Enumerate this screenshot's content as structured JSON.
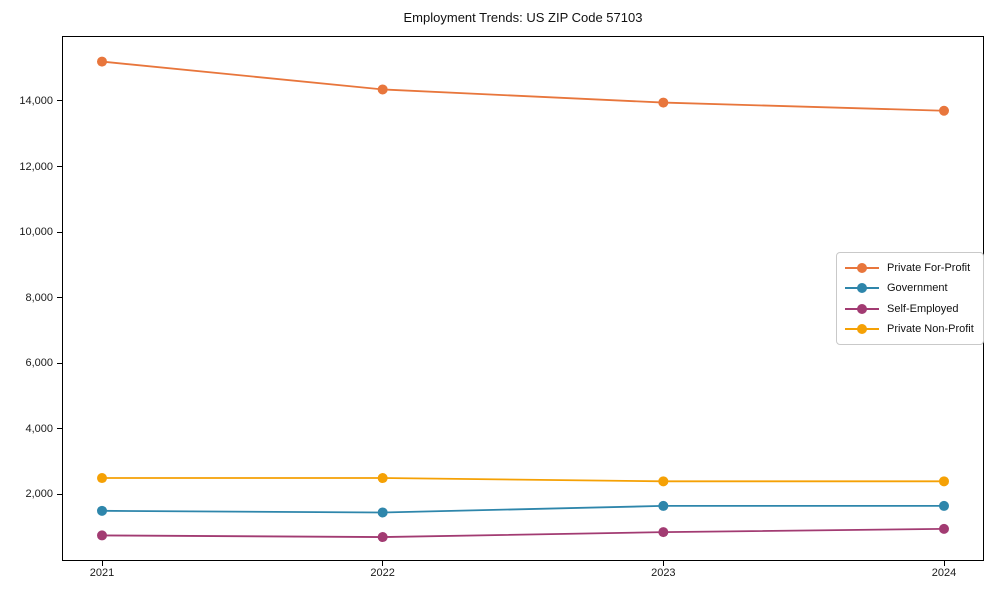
{
  "figure": {
    "title": "Employment Trends: US ZIP Code 57103"
  },
  "chart_data": {
    "type": "line",
    "title": "Employment Trends: US ZIP Code 57103",
    "xlabel": "",
    "ylabel": "",
    "categories": [
      "2021",
      "2022",
      "2023",
      "2024"
    ],
    "series": [
      {
        "name": "Private For-Profit",
        "color": "#E8763C",
        "values": [
          15200,
          14350,
          13950,
          13700
        ]
      },
      {
        "name": "Government",
        "color": "#2E86AB",
        "values": [
          1500,
          1450,
          1650,
          1650
        ]
      },
      {
        "name": "Self-Employed",
        "color": "#A23B72",
        "values": [
          750,
          700,
          850,
          950
        ]
      },
      {
        "name": "Private Non-Profit",
        "color": "#F5A105",
        "values": [
          2500,
          2500,
          2400,
          2400
        ]
      }
    ],
    "ylim": [
      -30,
      15980
    ],
    "yticks": [
      2000,
      4000,
      6000,
      8000,
      10000,
      12000,
      14000
    ],
    "ytick_labels": [
      "2,000",
      "4,000",
      "6,000",
      "8,000",
      "10,000",
      "12,000",
      "14,000"
    ],
    "grid": false,
    "legend_position": "center-right",
    "marker": "circle",
    "background_color": "#ffffff",
    "spine_color": "#000000"
  }
}
